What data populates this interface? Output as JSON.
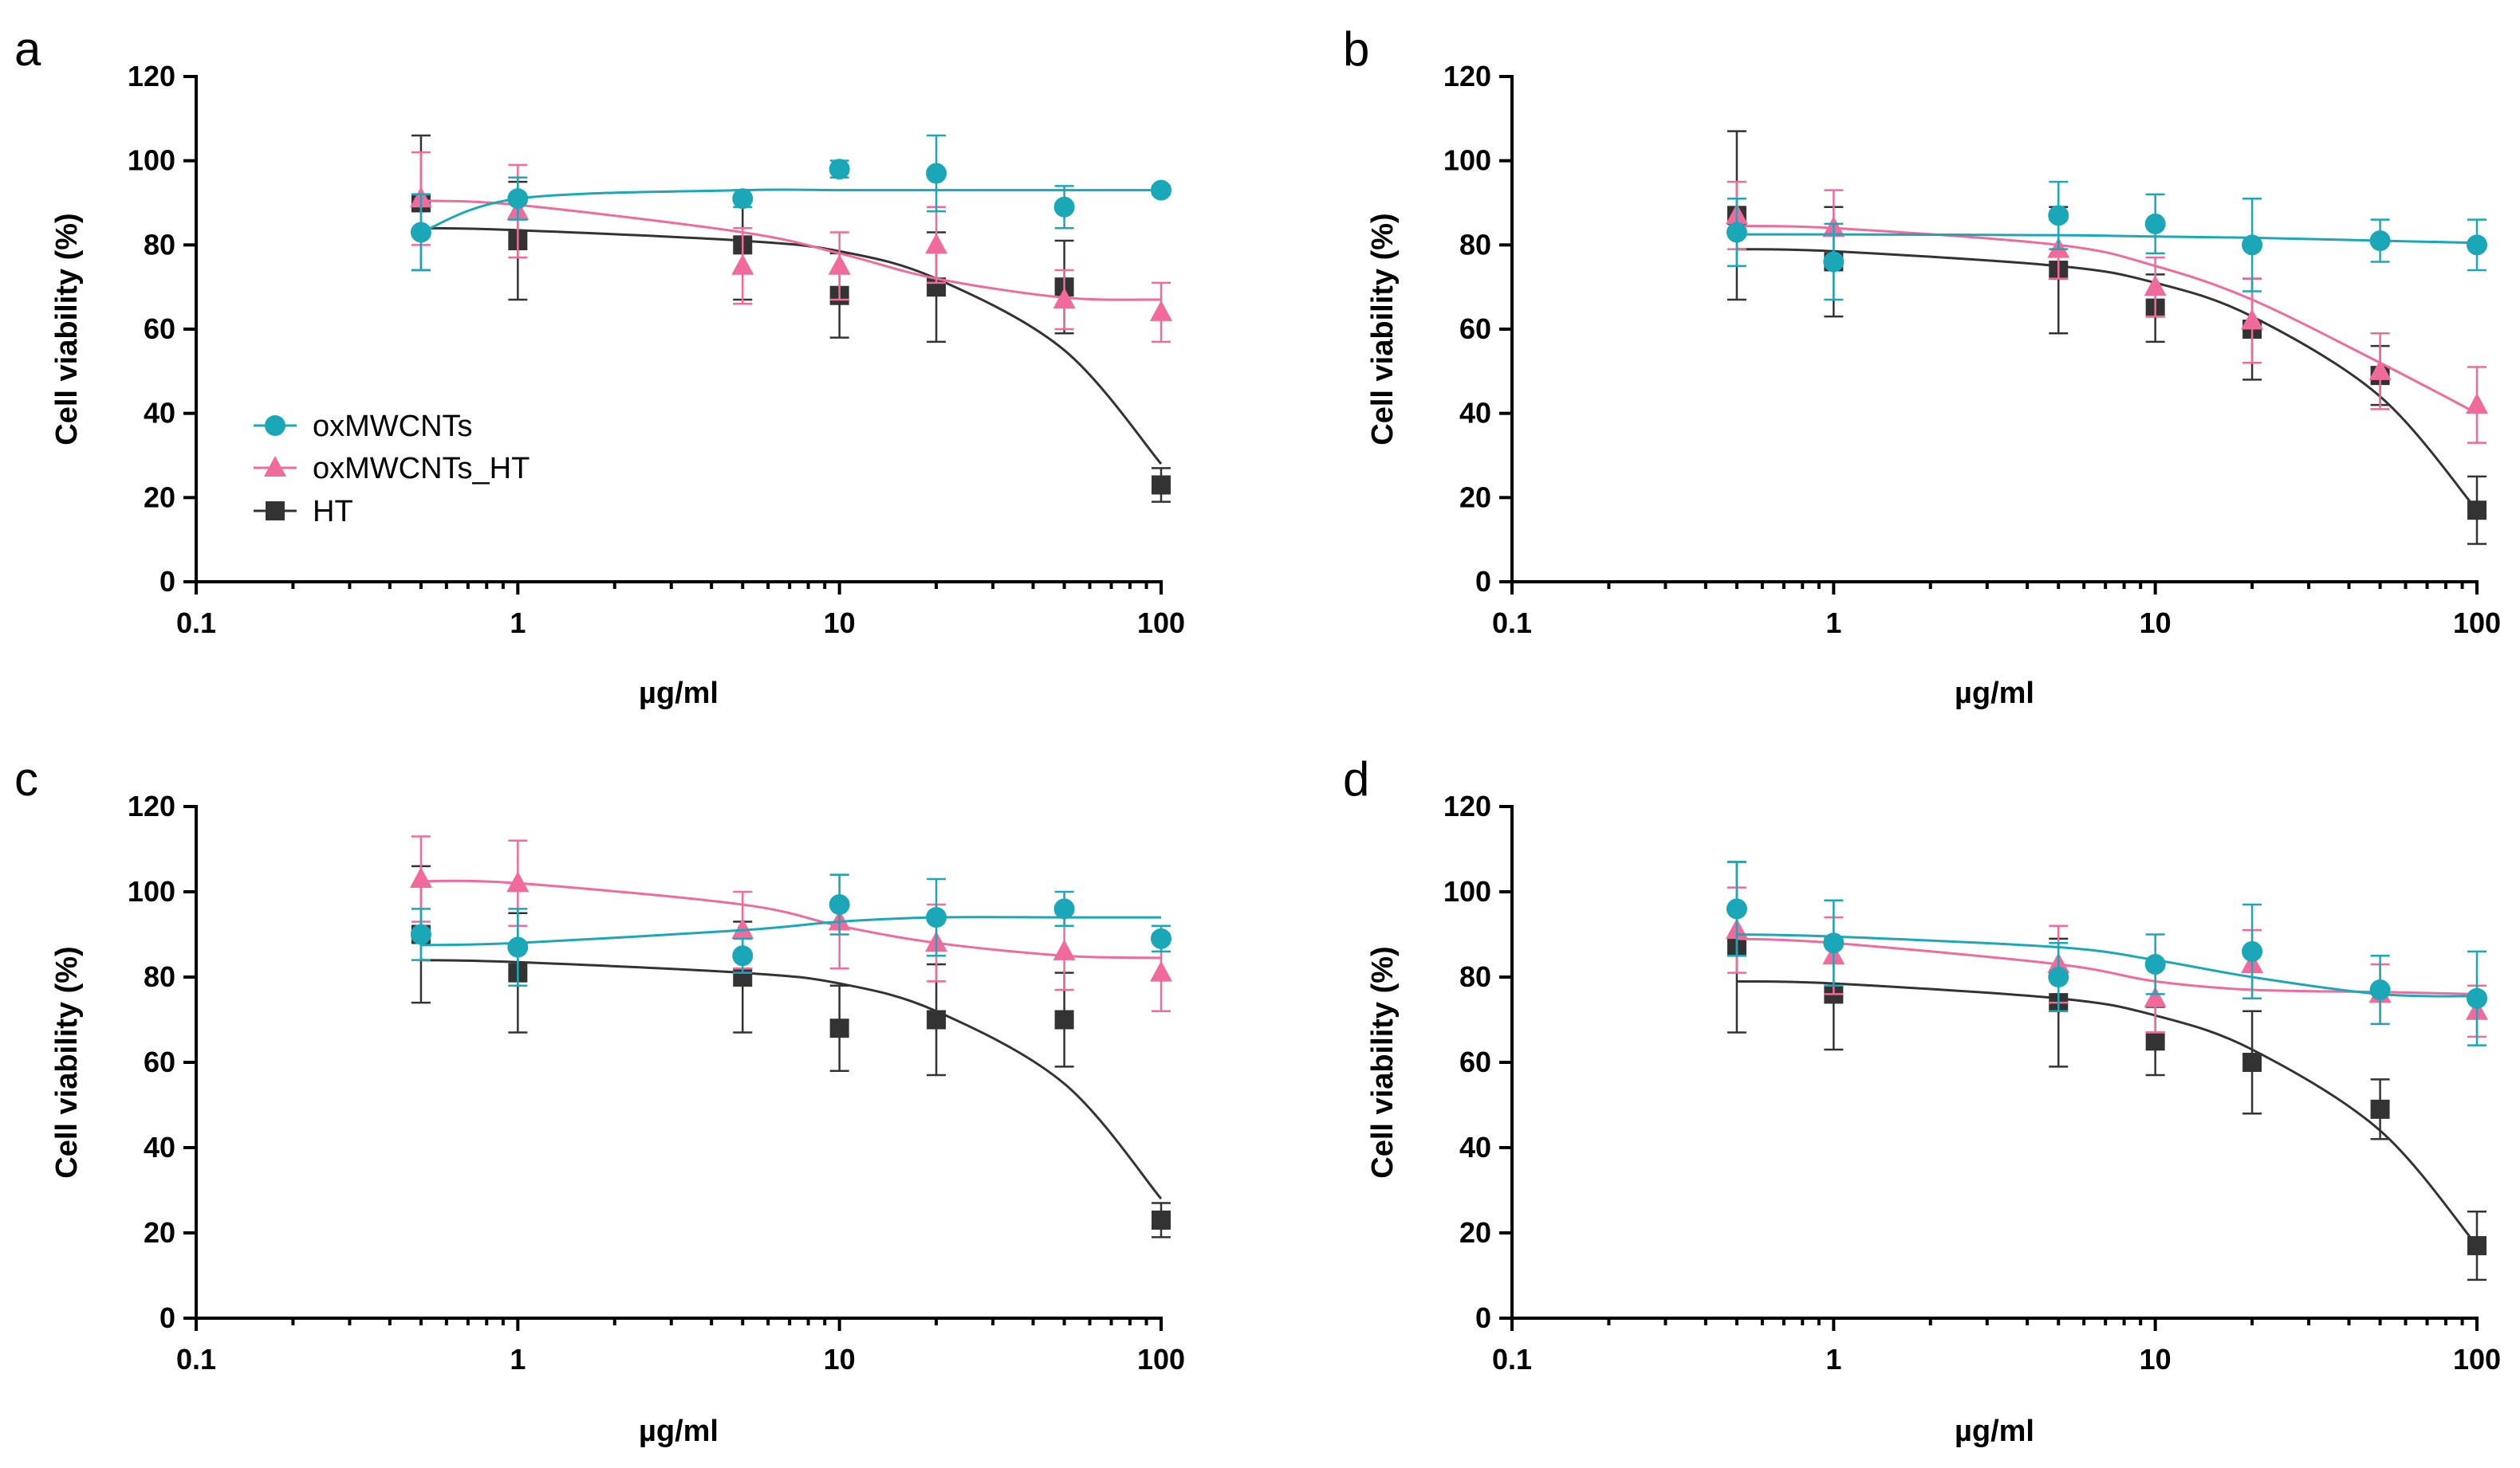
{
  "legend": [
    {
      "key": "ox",
      "label": "oxMWCNTs",
      "color": "#1aa8b8",
      "marker": "circle"
    },
    {
      "key": "oxht",
      "label": "oxMWCNTs_HT",
      "color": "#f06b9c",
      "marker": "triangle"
    },
    {
      "key": "ht",
      "label": "HT",
      "color": "#333333",
      "marker": "square"
    }
  ],
  "chart_data": [
    {
      "panel": "a",
      "type": "scatter",
      "title": "",
      "xlabel": "µg/ml",
      "ylabel": "Cell viability (%)",
      "xscale": "log",
      "xlim": [
        0.1,
        100
      ],
      "ylim": [
        0,
        120
      ],
      "xticks": [
        0.1,
        1,
        10,
        100
      ],
      "xtick_labels": [
        "0.1",
        "1",
        "10",
        "100"
      ],
      "yticks": [
        0,
        20,
        40,
        60,
        80,
        100,
        120
      ],
      "ytick_labels": [
        "0",
        "20",
        "40",
        "60",
        "80",
        "100",
        "120"
      ],
      "legend_position": "left-center",
      "x": [
        0.5,
        1,
        5,
        10,
        20,
        50,
        100
      ],
      "series": [
        {
          "key": "ox",
          "name": "oxMWCNTs",
          "values": [
            83,
            91,
            91,
            98,
            97,
            89,
            93
          ],
          "errors": [
            9,
            5,
            2,
            2,
            9,
            5,
            1
          ],
          "fit": [
            83,
            91,
            93,
            93,
            93,
            93,
            93
          ]
        },
        {
          "key": "oxht",
          "name": "oxMWCNTs_HT",
          "values": [
            91,
            88,
            75,
            75,
            80,
            67,
            64
          ],
          "errors": [
            11,
            11,
            9,
            8,
            9,
            7,
            7
          ],
          "fit": [
            90.5,
            89.5,
            83,
            78,
            72,
            67.5,
            67
          ]
        },
        {
          "key": "ht",
          "name": "HT",
          "values": [
            90,
            81,
            80,
            68,
            70,
            70,
            23
          ],
          "errors": [
            16,
            14,
            13,
            10,
            13,
            11,
            4
          ],
          "fit": [
            84,
            83.5,
            81,
            78.5,
            72,
            55,
            28
          ]
        }
      ]
    },
    {
      "panel": "b",
      "type": "scatter",
      "title": "",
      "xlabel": "µg/ml",
      "ylabel": "Cell viability (%)",
      "xscale": "log",
      "xlim": [
        0.1,
        100
      ],
      "ylim": [
        0,
        120
      ],
      "xticks": [
        0.1,
        1,
        10,
        100
      ],
      "xtick_labels": [
        "0.1",
        "1",
        "10",
        "100"
      ],
      "yticks": [
        0,
        20,
        40,
        60,
        80,
        100,
        120
      ],
      "ytick_labels": [
        "0",
        "20",
        "40",
        "60",
        "80",
        "100",
        "120"
      ],
      "x": [
        0.5,
        1,
        5,
        10,
        20,
        50,
        100
      ],
      "series": [
        {
          "key": "ox",
          "name": "oxMWCNTs",
          "values": [
            83,
            76,
            87,
            85,
            80,
            81,
            80
          ],
          "errors": [
            8,
            9,
            8,
            7,
            11,
            5,
            6
          ],
          "fit": [
            82.5,
            82.5,
            82.3,
            82,
            81.7,
            81,
            80.5
          ]
        },
        {
          "key": "oxht",
          "name": "oxMWCNTs_HT",
          "values": [
            87,
            84,
            79,
            70,
            62,
            50,
            42
          ],
          "errors": [
            8,
            9,
            7,
            7,
            10,
            9,
            9
          ],
          "fit": [
            84.5,
            84,
            80,
            75,
            67,
            52,
            40
          ]
        },
        {
          "key": "ht",
          "name": "HT",
          "values": [
            87,
            76,
            74,
            65,
            60,
            49,
            17
          ],
          "errors": [
            20,
            13,
            15,
            8,
            12,
            7,
            8
          ],
          "fit": [
            79,
            78.5,
            75,
            71,
            63,
            44,
            17
          ]
        }
      ]
    },
    {
      "panel": "c",
      "type": "scatter",
      "title": "",
      "xlabel": "µg/ml",
      "ylabel": "Cell viability (%)",
      "xscale": "log",
      "xlim": [
        0.1,
        100
      ],
      "ylim": [
        0,
        120
      ],
      "xticks": [
        0.1,
        1,
        10,
        100
      ],
      "xtick_labels": [
        "0.1",
        "1",
        "10",
        "100"
      ],
      "yticks": [
        0,
        20,
        40,
        60,
        80,
        100,
        120
      ],
      "ytick_labels": [
        "0",
        "20",
        "40",
        "60",
        "80",
        "100",
        "120"
      ],
      "x": [
        0.5,
        1,
        5,
        10,
        20,
        50,
        100
      ],
      "series": [
        {
          "key": "ox",
          "name": "oxMWCNTs",
          "values": [
            90,
            87,
            85,
            97,
            94,
            96,
            89
          ],
          "errors": [
            6,
            9,
            4,
            7,
            9,
            4,
            3
          ],
          "fit": [
            87.5,
            88,
            91,
            93,
            94,
            94,
            94
          ]
        },
        {
          "key": "oxht",
          "name": "oxMWCNTs_HT",
          "values": [
            103,
            102,
            91,
            93,
            88,
            86,
            81
          ],
          "errors": [
            10,
            10,
            9,
            11,
            9,
            9,
            9
          ],
          "fit": [
            102.5,
            102,
            97,
            92,
            88,
            85,
            84.5
          ]
        },
        {
          "key": "ht",
          "name": "HT",
          "values": [
            90,
            81,
            80,
            68,
            70,
            70,
            23
          ],
          "errors": [
            16,
            14,
            13,
            10,
            13,
            11,
            4
          ],
          "fit": [
            84,
            83.5,
            81,
            78.5,
            72,
            55,
            28
          ]
        }
      ]
    },
    {
      "panel": "d",
      "type": "scatter",
      "title": "",
      "xlabel": "µg/ml",
      "ylabel": "Cell viability (%)",
      "xscale": "log",
      "xlim": [
        0.1,
        100
      ],
      "ylim": [
        0,
        120
      ],
      "xticks": [
        0.1,
        1,
        10,
        100
      ],
      "xtick_labels": [
        "0.1",
        "1",
        "10",
        "100"
      ],
      "yticks": [
        0,
        20,
        40,
        60,
        80,
        100,
        120
      ],
      "ytick_labels": [
        "0",
        "20",
        "40",
        "60",
        "80",
        "100",
        "120"
      ],
      "x": [
        0.5,
        1,
        5,
        10,
        20,
        50,
        100
      ],
      "series": [
        {
          "key": "ox",
          "name": "oxMWCNTs",
          "values": [
            96,
            88,
            80,
            83,
            86,
            77,
            75
          ],
          "errors": [
            11,
            10,
            8,
            7,
            11,
            8,
            11
          ],
          "fit": [
            90,
            89.5,
            87,
            84,
            80,
            76,
            75.5
          ]
        },
        {
          "key": "oxht",
          "name": "oxMWCNTs_HT",
          "values": [
            91,
            85,
            83,
            75,
            83,
            76,
            72
          ],
          "errors": [
            10,
            9,
            9,
            8,
            8,
            7,
            6
          ],
          "fit": [
            89,
            88,
            83,
            79,
            77,
            76.5,
            76
          ]
        },
        {
          "key": "ht",
          "name": "HT",
          "values": [
            87,
            76,
            74,
            65,
            60,
            49,
            17
          ],
          "errors": [
            20,
            13,
            15,
            8,
            12,
            7,
            8
          ],
          "fit": [
            79,
            78.5,
            75,
            71,
            63,
            44,
            17
          ]
        }
      ]
    }
  ]
}
